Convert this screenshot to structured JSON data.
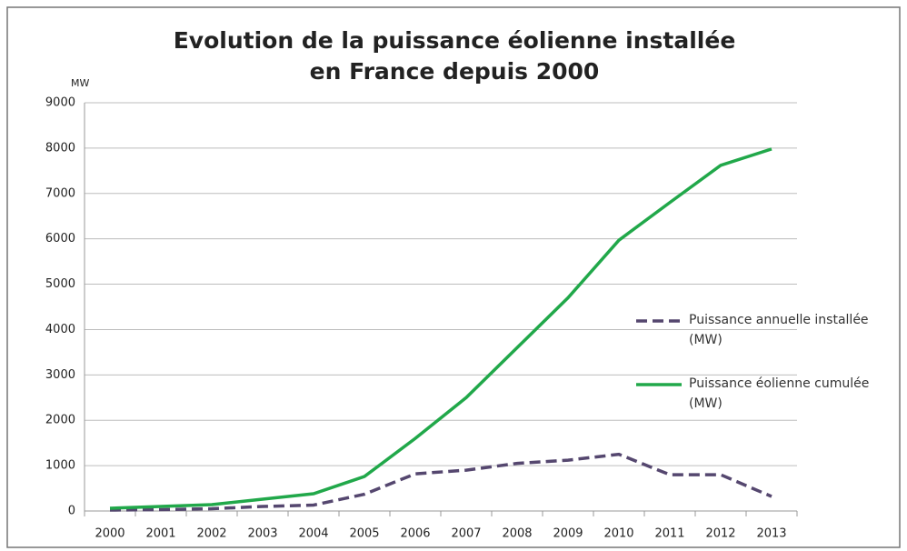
{
  "chart_data": {
    "type": "line",
    "title": "Evolution de la puissance éolienne installée\nen France depuis 2000",
    "ylabel": "MW",
    "categories": [
      "2000",
      "2001",
      "2002",
      "2003",
      "2004",
      "2005",
      "2006",
      "2007",
      "2008",
      "2009",
      "2010",
      "2011",
      "2012",
      "2013"
    ],
    "series": [
      {
        "name": "Puissance annuelle installée (MW)",
        "color": "#55476f",
        "dash": true,
        "values": [
          20,
          30,
          50,
          100,
          130,
          370,
          820,
          900,
          1050,
          1120,
          1250,
          800,
          800,
          320
        ]
      },
      {
        "name": "Puissance éolienne cumulée (MW)",
        "color": "#21a84a",
        "dash": false,
        "values": [
          60,
          100,
          140,
          260,
          380,
          760,
          1600,
          2500,
          3600,
          4700,
          5970,
          6800,
          7620,
          7980
        ]
      }
    ],
    "ylim": [
      0,
      9000
    ],
    "yticks": [
      0,
      1000,
      2000,
      3000,
      4000,
      5000,
      6000,
      7000,
      8000,
      9000
    ],
    "grid": true
  }
}
